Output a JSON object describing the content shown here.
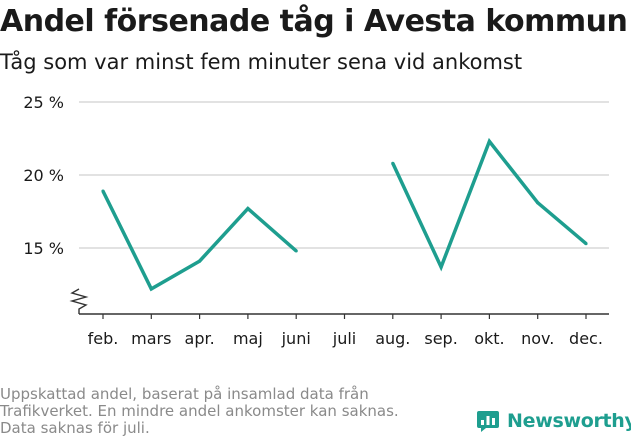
{
  "title": "Andel försenade tåg i Avesta kommun",
  "subtitle": "Tåg som var minst fem minuter sena vid ankomst",
  "footnote": [
    "Uppskattad andel, baserat på insamlad data från",
    "Trafikverket. En mindre andel ankomster kan saknas.",
    "Data saknas för juli."
  ],
  "brand": {
    "name": "Newsworthy",
    "color": "#1e9e8f"
  },
  "chart_data": {
    "type": "line",
    "categories": [
      "feb.",
      "mars",
      "apr.",
      "maj",
      "juni",
      "juli",
      "aug.",
      "sep.",
      "okt.",
      "nov.",
      "dec."
    ],
    "values": [
      18.9,
      12.2,
      14.1,
      17.7,
      14.8,
      null,
      20.8,
      13.7,
      22.3,
      18.1,
      15.3
    ],
    "y_ticks": [
      15,
      20,
      25
    ],
    "y_tick_labels": [
      "15 %",
      "20 %",
      "25 %"
    ],
    "ylim": [
      11.0,
      25
    ],
    "axis_break": true,
    "grid": true,
    "line_color": "#1e9e8f"
  }
}
